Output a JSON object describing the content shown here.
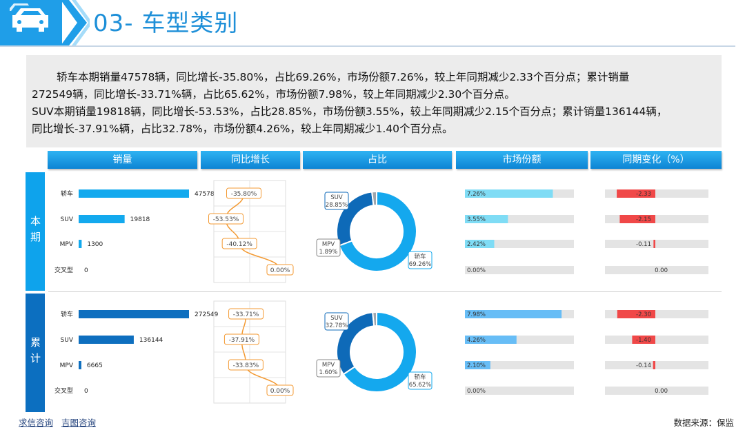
{
  "header": {
    "title": "03- 车型类别",
    "icon": "car-icon"
  },
  "summary": {
    "lines": [
      "轿车本期销量47578辆，同比增长-35.80%，占比69.26%，市场份额7.26%，较上年同期减少2.33个百分点；累计销量",
      "272549辆，同比增长-33.71%辆，占比65.62%，市场份额7.98%，较上年同期减少2.30个百分点。",
      "SUV本期销量19818辆，同比增长-53.53%，占比28.85%，市场份额3.55%，较上年同期减少2.15个百分点；累计销量136144辆，",
      "同比增长-37.91%辆，占比32.78%，市场份额4.26%，较上年同期减少1.40个百分点。"
    ]
  },
  "columns": [
    "销量",
    "同比增长",
    "占比",
    "市场份额",
    "同期变化（%）"
  ],
  "sections": [
    {
      "label": "本期"
    },
    {
      "label": "累计"
    }
  ],
  "colors": {
    "bar_current": "#13a9ee",
    "bar_cumulative": "#0e6fbf",
    "line": "#f39a33",
    "donut_main": "#14a8ee",
    "donut_second": "#0e6ab8",
    "share_current": "#7fdcf5",
    "share_cumulative": "#67bdf6",
    "neg_change": "#f04848",
    "track": "#e4e4e4"
  },
  "chart_data": [
    {
      "id": "sales-current",
      "type": "bar",
      "orientation": "horizontal",
      "categories": [
        "轿车",
        "SUV",
        "MPV",
        "交叉型"
      ],
      "values": [
        47578,
        19818,
        1300,
        0
      ],
      "labels": [
        "47578",
        "19818",
        "1300",
        "0"
      ]
    },
    {
      "id": "growth-current",
      "type": "line",
      "categories": [
        "轿车",
        "SUV",
        "MPV",
        "交叉型"
      ],
      "values": [
        -35.8,
        -53.53,
        -40.12,
        0.0
      ],
      "labels": [
        "-35.80%",
        "-53.53%",
        "-40.12%",
        "0.00%"
      ]
    },
    {
      "id": "share-current",
      "type": "pie",
      "donut": true,
      "categories": [
        "轿车",
        "SUV",
        "MPV",
        "交叉型"
      ],
      "values": [
        69.26,
        28.85,
        1.89,
        0
      ],
      "labels": [
        "轿车\n69.26%",
        "SUV\n28.85%",
        "MPV\n1.89%"
      ]
    },
    {
      "id": "market-current",
      "type": "bar",
      "orientation": "horizontal",
      "categories": [
        "轿车",
        "SUV",
        "MPV",
        "交叉型"
      ],
      "values": [
        7.26,
        3.55,
        2.42,
        0.0
      ],
      "labels": [
        "7.26%",
        "3.55%",
        "2.42%",
        "0.00%"
      ]
    },
    {
      "id": "change-current",
      "type": "bar",
      "orientation": "horizontal",
      "categories": [
        "轿车",
        "SUV",
        "MPV",
        "交叉型"
      ],
      "values": [
        -2.33,
        -2.15,
        -0.11,
        0.0
      ],
      "labels": [
        "-2.33",
        "-2.15",
        "-0.11",
        "0.00"
      ]
    },
    {
      "id": "sales-cumulative",
      "type": "bar",
      "orientation": "horizontal",
      "categories": [
        "轿车",
        "SUV",
        "MPV",
        "交叉型"
      ],
      "values": [
        272549,
        136144,
        6665,
        0
      ],
      "labels": [
        "272549",
        "136144",
        "6665",
        "0"
      ]
    },
    {
      "id": "growth-cumulative",
      "type": "line",
      "categories": [
        "轿车",
        "SUV",
        "MPV",
        "交叉型"
      ],
      "values": [
        -33.71,
        -37.91,
        -33.83,
        0.0
      ],
      "labels": [
        "-33.71%",
        "-37.91%",
        "-33.83%",
        "0.00%"
      ]
    },
    {
      "id": "share-cumulative",
      "type": "pie",
      "donut": true,
      "categories": [
        "轿车",
        "SUV",
        "MPV",
        "交叉型"
      ],
      "values": [
        65.62,
        32.78,
        1.6,
        0
      ],
      "labels": [
        "轿车\n65.62%",
        "SUV\n32.78%",
        "MPV\n1.60%"
      ]
    },
    {
      "id": "market-cumulative",
      "type": "bar",
      "orientation": "horizontal",
      "categories": [
        "轿车",
        "SUV",
        "MPV",
        "交叉型"
      ],
      "values": [
        7.98,
        4.26,
        2.1,
        0.0
      ],
      "labels": [
        "7.98%",
        "4.26%",
        "2.10%",
        "0.00%"
      ]
    },
    {
      "id": "change-cumulative",
      "type": "bar",
      "orientation": "horizontal",
      "categories": [
        "轿车",
        "SUV",
        "MPV",
        "交叉型"
      ],
      "values": [
        -2.3,
        -1.4,
        -0.14,
        0.0
      ],
      "labels": [
        "-2.30",
        "-1.40",
        "-0.14",
        "0.00"
      ]
    }
  ],
  "footer": {
    "links": [
      "求信咨询",
      "吉图咨询"
    ],
    "source": "数据来源：保监"
  }
}
